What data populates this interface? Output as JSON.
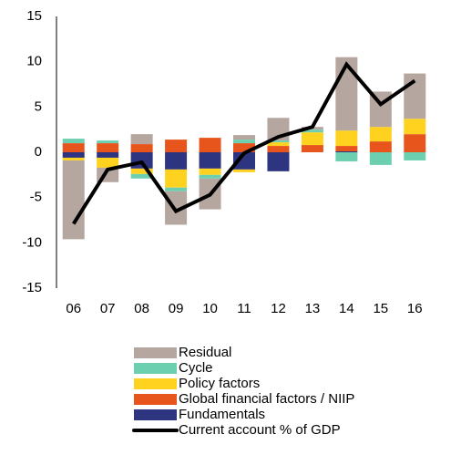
{
  "chart_data": {
    "type": "bar",
    "stacked": true,
    "categories": [
      "06",
      "07",
      "08",
      "09",
      "10",
      "11",
      "12",
      "13",
      "14",
      "15",
      "16"
    ],
    "ylim": [
      -15,
      15
    ],
    "yticks": [
      -15,
      -10,
      -5,
      0,
      5,
      10,
      15
    ],
    "series": [
      {
        "name": "Fundamentals",
        "color": "#2e3580",
        "values": [
          -0.6,
          -0.6,
          -1.8,
          -1.9,
          -1.8,
          -1.9,
          -2.1,
          0,
          0.1,
          0,
          0
        ]
      },
      {
        "name": "Global financial factors / NIIP",
        "color": "#e8551c",
        "values": [
          1.0,
          1.0,
          0.9,
          1.4,
          1.6,
          1.0,
          0.7,
          0.8,
          0.6,
          1.2,
          2.0
        ]
      },
      {
        "name": "Policy factors",
        "color": "#ffd21f",
        "values": [
          -0.3,
          -1.1,
          -0.6,
          -2.0,
          -0.7,
          -0.3,
          0.4,
          1.4,
          1.7,
          1.6,
          1.7
        ]
      },
      {
        "name": "Cycle",
        "color": "#6ccfb0",
        "values": [
          0.5,
          0.3,
          -0.5,
          -0.4,
          -0.4,
          0.4,
          0.2,
          0.3,
          -1.0,
          -1.4,
          -0.9
        ]
      },
      {
        "name": "Residual",
        "color": "#b5a69f",
        "values": [
          -8.7,
          -1.6,
          1.1,
          -3.7,
          -3.4,
          0.5,
          2.5,
          0.3,
          8.1,
          3.9,
          5.0
        ]
      },
      {
        "name": "Current account % of GDP",
        "type": "line",
        "color": "#000000",
        "values": [
          -7.9,
          -1.9,
          -1.1,
          -6.5,
          -4.7,
          -0.1,
          1.7,
          2.8,
          9.7,
          5.3,
          7.9
        ]
      }
    ]
  }
}
